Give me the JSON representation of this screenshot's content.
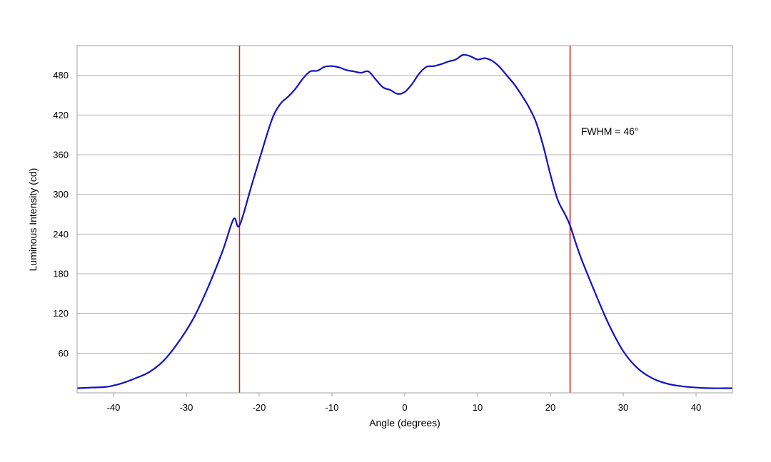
{
  "chart_data": {
    "type": "line",
    "title": "",
    "xlabel": "Angle (degrees)",
    "ylabel": "Luminous Intensity (cd)",
    "xlim": [
      -45,
      45
    ],
    "ylim": [
      0,
      525
    ],
    "x_ticks": [
      -40,
      -30,
      -20,
      -10,
      0,
      10,
      20,
      30,
      40
    ],
    "y_ticks": [
      60,
      120,
      180,
      240,
      300,
      360,
      420,
      480
    ],
    "grid": "horizontal",
    "legend": "none",
    "line_color": "#1010c8",
    "marker_color": "#cc2222",
    "frame_color": "#a0a0a0",
    "grid_color": "#b4b4b4",
    "series": [
      {
        "x": [
          -45,
          -43,
          -41,
          -39,
          -37,
          -35,
          -33,
          -31,
          -29,
          -27,
          -25,
          -23.5,
          -22.7,
          -21,
          -19,
          -18,
          -17,
          -16,
          -15,
          -14,
          -13,
          -12,
          -11,
          -10,
          -9,
          -8,
          -7,
          -6,
          -5,
          -4,
          -3,
          -2,
          -1,
          0,
          1,
          2,
          3,
          4,
          5,
          6,
          7,
          8,
          9,
          10,
          11,
          12,
          13,
          14,
          15,
          16,
          17,
          18,
          19,
          20,
          21,
          22,
          22.7,
          24,
          26,
          28,
          30,
          32,
          34,
          36,
          38,
          40,
          42,
          44,
          45
        ],
        "y": [
          7,
          8,
          9,
          14,
          22,
          32,
          50,
          78,
          113,
          160,
          215,
          263,
          253,
          315,
          388,
          420,
          438,
          448,
          460,
          475,
          486,
          487,
          493,
          494,
          492,
          488,
          486,
          484,
          486,
          474,
          462,
          458,
          452,
          455,
          467,
          483,
          493,
          494,
          497,
          501,
          504,
          511,
          509,
          504,
          506,
          502,
          493,
          480,
          467,
          451,
          433,
          410,
          374,
          330,
          292,
          270,
          253,
          210,
          155,
          104,
          63,
          37,
          22,
          14,
          10,
          8,
          7,
          7,
          7
        ]
      }
    ],
    "markers": [
      {
        "x": -22.7
      },
      {
        "x": 22.7
      }
    ],
    "annotations": [
      {
        "text": "FWHM = 46°",
        "x": 24.2,
        "y": 390
      }
    ]
  }
}
